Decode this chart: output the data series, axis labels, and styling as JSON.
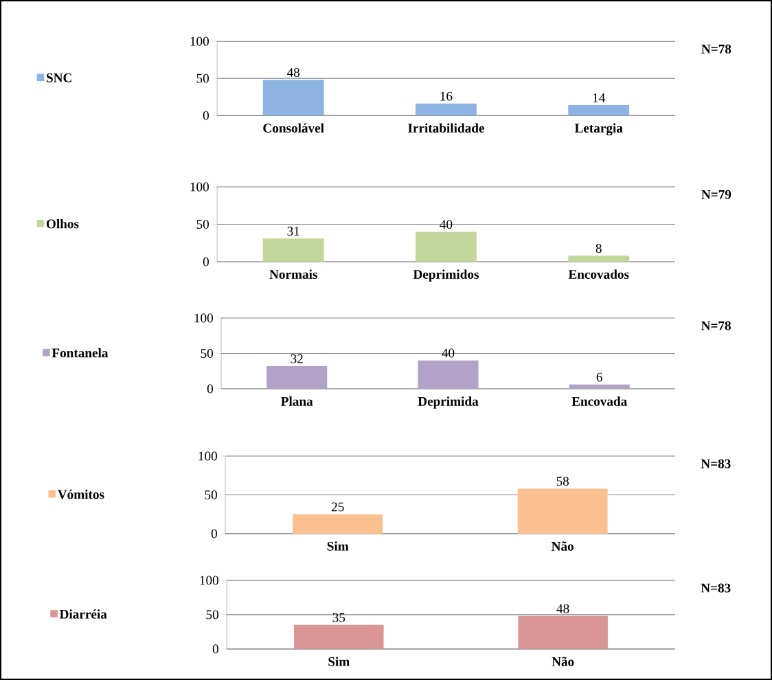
{
  "chart_data": [
    {
      "type": "bar",
      "categories": [
        "Consolável",
        "Irritabilidade",
        "Letargia"
      ],
      "series": [
        {
          "name": "SNC",
          "color": "#8db3e2",
          "values": [
            48,
            16,
            14
          ]
        }
      ],
      "ylim": [
        0,
        100
      ],
      "yticks": [
        0,
        50,
        100
      ],
      "grid": "y",
      "legend": "left",
      "data_labels": true,
      "annotations": [
        "N=78"
      ]
    },
    {
      "type": "bar",
      "categories": [
        "Normais",
        "Deprimidos",
        "Encovados"
      ],
      "series": [
        {
          "name": "Olhos",
          "color": "#c3d69b",
          "values": [
            31,
            40,
            8
          ]
        }
      ],
      "ylim": [
        0,
        100
      ],
      "yticks": [
        0,
        50,
        100
      ],
      "grid": "y",
      "legend": "left",
      "data_labels": true,
      "annotations": [
        "N=79"
      ]
    },
    {
      "type": "bar",
      "categories": [
        "Plana",
        "Deprimida",
        "Encovada"
      ],
      "series": [
        {
          "name": "Fontanela",
          "color": "#b3a2c7",
          "values": [
            32,
            40,
            6
          ]
        }
      ],
      "ylim": [
        0,
        100
      ],
      "yticks": [
        0,
        50,
        100
      ],
      "grid": "y",
      "legend": "left",
      "data_labels": true,
      "annotations": [
        "N=78"
      ]
    },
    {
      "type": "bar",
      "categories": [
        "Sim",
        "Não"
      ],
      "series": [
        {
          "name": "Vómitos",
          "color": "#fac090",
          "values": [
            25,
            58
          ]
        }
      ],
      "ylim": [
        0,
        100
      ],
      "yticks": [
        0,
        50,
        100
      ],
      "grid": "y",
      "legend": "left",
      "data_labels": true,
      "annotations": [
        "N=83"
      ]
    },
    {
      "type": "bar",
      "categories": [
        "Sim",
        "Não"
      ],
      "series": [
        {
          "name": "Diarréia",
          "color": "#d99694",
          "values": [
            35,
            48
          ]
        }
      ],
      "ylim": [
        0,
        100
      ],
      "yticks": [
        0,
        50,
        100
      ],
      "grid": "y",
      "legend": "left",
      "data_labels": true,
      "annotations": [
        "N=83"
      ]
    }
  ]
}
